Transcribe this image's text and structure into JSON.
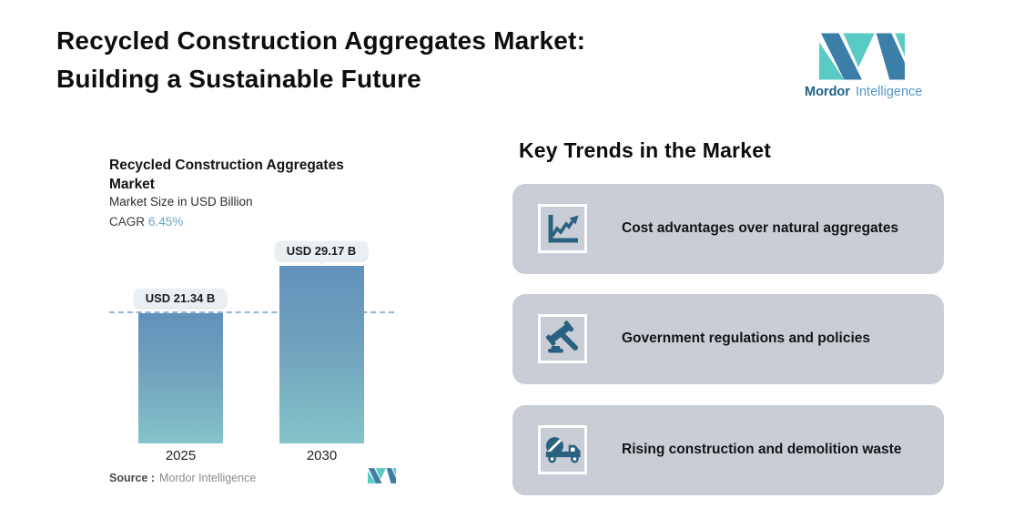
{
  "header": {
    "title_line1": "Recycled Construction Aggregates Market:",
    "title_line2": "Building a Sustainable Future",
    "logo": {
      "brand_bold": "Mordor",
      "brand_light": "Intelligence"
    }
  },
  "chart_data": {
    "type": "bar",
    "title": "Recycled Construction Aggregates Market",
    "subtitle": "Market Size in USD Billion",
    "cagr_label": "CAGR",
    "cagr_value": "6.45%",
    "categories": [
      "2025",
      "2030"
    ],
    "values": [
      21.34,
      29.17
    ],
    "value_labels": [
      "USD 21.34 B",
      "USD 29.17 B"
    ],
    "xlabel": "",
    "ylabel": "Market Size in USD Billion",
    "ylim": [
      0,
      33
    ],
    "grid": false,
    "legend": "none",
    "reference_line_at": 21.34,
    "reference_line_style": "dashed",
    "source_label": "Source :",
    "source_value": "Mordor Intelligence"
  },
  "trends": {
    "heading": "Key Trends in the Market",
    "cards": [
      {
        "icon": "line-chart-icon",
        "text": "Cost advantages over natural aggregates"
      },
      {
        "icon": "gavel-icon",
        "text": "Government regulations and policies"
      },
      {
        "icon": "mixer-truck-icon",
        "text": "Rising construction and demolition waste"
      }
    ]
  },
  "colors": {
    "icon_blue": "#2a6180",
    "card_bg": "#c9ced6",
    "bar_gradient_top": "#6191b9",
    "bar_gradient_bottom": "#84c4c9",
    "reference_line": "#90b6d6",
    "cagr_blue": "#6ca3cc",
    "logo_teal": "#59cbc4",
    "logo_blue": "#3b7ea8"
  }
}
